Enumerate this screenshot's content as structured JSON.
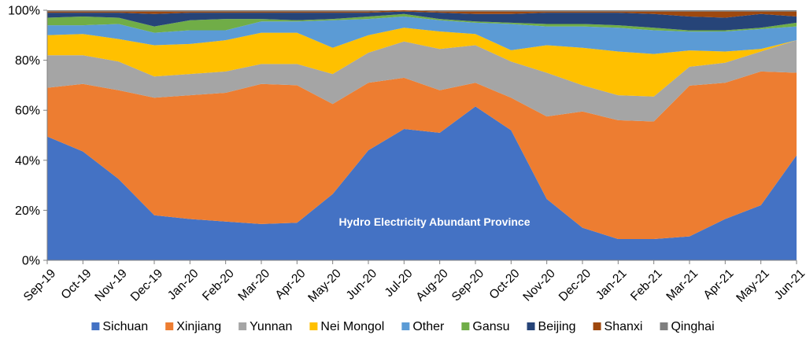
{
  "chart_data": {
    "type": "area",
    "stacked": true,
    "percent": true,
    "title": "",
    "xlabel": "",
    "ylabel": "",
    "ylim": [
      0,
      100
    ],
    "yticks": [
      "0%",
      "20%",
      "40%",
      "60%",
      "80%",
      "100%"
    ],
    "annotation": "Hydro Electricity Abundant Province",
    "legend_position": "bottom",
    "x": [
      "Sep-19",
      "Oct-19",
      "Nov-19",
      "Dec-19",
      "Jan-20",
      "Feb-20",
      "Mar-20",
      "Apr-20",
      "May-20",
      "Jun-20",
      "Jul-20",
      "Aug-20",
      "Sep-20",
      "Oct-20",
      "Nov-20",
      "Dec-20",
      "Jan-21",
      "Feb-21",
      "Mar-21",
      "Apr-21",
      "May-21",
      "Jun-21"
    ],
    "series": [
      {
        "name": "Sichuan",
        "color": "#4472C4",
        "values": [
          49.5,
          43.5,
          32.5,
          18,
          16.5,
          15.5,
          14.5,
          15,
          26.5,
          44,
          52.5,
          51,
          61.5,
          52,
          24.5,
          13,
          8.5,
          8.5,
          9.5,
          16.5,
          22,
          42
        ]
      },
      {
        "name": "Xinjiang",
        "color": "#ED7D31",
        "values": [
          19.5,
          27,
          35.5,
          47,
          49.5,
          51.5,
          56,
          55,
          36,
          27,
          20.5,
          17,
          9.5,
          13,
          33,
          46.5,
          47.5,
          47,
          60,
          54.5,
          53.5,
          33
        ]
      },
      {
        "name": "Yunnan",
        "color": "#A5A5A5",
        "values": [
          13,
          11.5,
          11.5,
          8.5,
          8.5,
          8.5,
          8,
          8.5,
          12,
          12,
          14.5,
          16.5,
          15,
          14.5,
          17.5,
          10.5,
          10,
          10,
          7.5,
          8,
          8,
          13
        ]
      },
      {
        "name": "Nei Mongol",
        "color": "#FFC000",
        "values": [
          8,
          8.5,
          9,
          12.5,
          12,
          12.5,
          12.5,
          12.5,
          10.5,
          7,
          5.5,
          7,
          4.5,
          4.5,
          11,
          15,
          17.5,
          17,
          6.5,
          4.5,
          1,
          0
        ]
      },
      {
        "name": "Other",
        "color": "#5B9BD5",
        "values": [
          4,
          3.5,
          6,
          5,
          5.5,
          4,
          4.5,
          4.5,
          11,
          6.5,
          4.5,
          4.5,
          4.5,
          10.5,
          7.5,
          8.5,
          9.5,
          9.5,
          7.5,
          8,
          8,
          5.5
        ]
      },
      {
        "name": "Gansu",
        "color": "#70AD47",
        "values": [
          3,
          3.5,
          2.5,
          2.5,
          4,
          4.5,
          1,
          0.5,
          0.5,
          1,
          1,
          0.5,
          0.5,
          0.5,
          1,
          1,
          1,
          1,
          0.5,
          0.5,
          0.5,
          1.5
        ]
      },
      {
        "name": "Beijing",
        "color": "#264478",
        "values": [
          2,
          1.5,
          2,
          5,
          3,
          2.5,
          2.5,
          3,
          2.5,
          1.5,
          1,
          2.5,
          3,
          3.5,
          4.5,
          4.5,
          5,
          5.5,
          5.5,
          5,
          5.5,
          2.5
        ]
      },
      {
        "name": "Shanxi",
        "color": "#9E480E",
        "values": [
          0.5,
          0.5,
          0.5,
          1,
          0.5,
          0.5,
          0.5,
          0.5,
          0.5,
          0.5,
          0.5,
          0.5,
          1,
          1,
          0.5,
          0.5,
          0.5,
          1,
          2,
          2.5,
          1,
          2
        ]
      },
      {
        "name": "Qinghai",
        "color": "#7F7F7F",
        "values": [
          0.5,
          0.5,
          0.5,
          0.5,
          0.5,
          0.5,
          0.5,
          0.5,
          0.5,
          0.5,
          0,
          0.5,
          0.5,
          0.5,
          0.5,
          0.5,
          0.5,
          0.5,
          0.5,
          0.5,
          0.5,
          0.5
        ]
      }
    ]
  }
}
